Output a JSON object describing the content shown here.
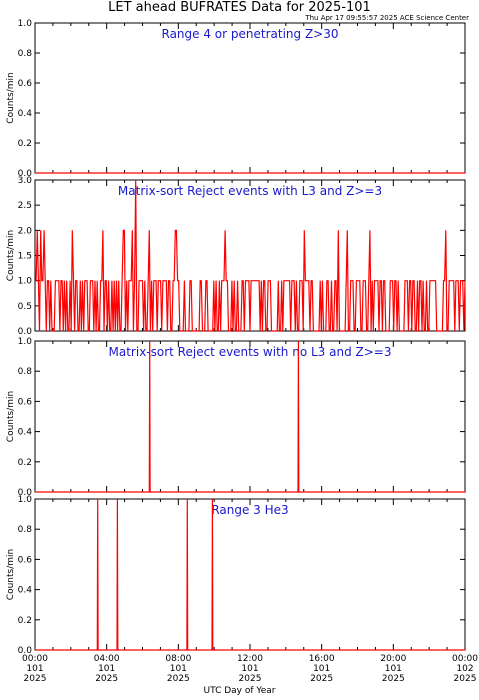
{
  "title": "LET ahead BUFRATES Data for 2025-101",
  "stamp": "Thu Apr 17 09:55:57 2025 ACE Science Center",
  "colors": {
    "series": "#ff0000",
    "panel_title": "#1a1acc",
    "axes": "#000000"
  },
  "chart_data": [
    {
      "type": "line",
      "title": "Range 4 or  penetrating Z>30",
      "ylabel": "Counts/min",
      "ylim": [
        0,
        1.0
      ],
      "yticks": [
        "0.0",
        "0.2",
        "0.4",
        "0.6",
        "0.8",
        "1.0"
      ],
      "x_hours": [],
      "y": []
    },
    {
      "type": "line",
      "title": "Matrix-sort Reject events with L3 and Z>=3",
      "ylabel": "Counts/min",
      "ylim": [
        0,
        3.0
      ],
      "yticks": [
        "0.0",
        "0.5",
        "1.0",
        "1.5",
        "2.0",
        "2.5",
        "3.0"
      ],
      "baseline": 1,
      "spikes": [
        {
          "x": 0.1,
          "y": 2
        },
        {
          "x": 0.3,
          "y": 2
        },
        {
          "x": 0.5,
          "y": 2
        },
        {
          "x": 2.1,
          "y": 2
        },
        {
          "x": 3.8,
          "y": 2
        },
        {
          "x": 4.9,
          "y": 2
        },
        {
          "x": 5.0,
          "y": 2
        },
        {
          "x": 5.4,
          "y": 2
        },
        {
          "x": 5.6,
          "y": 3
        },
        {
          "x": 6.4,
          "y": 2
        },
        {
          "x": 7.8,
          "y": 2
        },
        {
          "x": 7.9,
          "y": 2
        },
        {
          "x": 10.6,
          "y": 2
        },
        {
          "x": 15.0,
          "y": 2
        },
        {
          "x": 16.9,
          "y": 2
        },
        {
          "x": 17.4,
          "y": 2
        },
        {
          "x": 18.7,
          "y": 2
        },
        {
          "x": 22.9,
          "y": 2
        }
      ],
      "dropouts": [
        0.6,
        1.4,
        2.6,
        3.3,
        4.2,
        5.7,
        6.2,
        7.1,
        8.3,
        9.0,
        9.8,
        11.2,
        12.0,
        12.7,
        13.5,
        14.3,
        15.6,
        16.4,
        17.8,
        18.9,
        19.6,
        20.4,
        21.2,
        22.0,
        23.4
      ]
    },
    {
      "type": "line",
      "title": "Matrix-sort Reject events with no L3 and Z>=3",
      "ylabel": "Counts/min",
      "ylim": [
        0,
        1.0
      ],
      "yticks": [
        "0.0",
        "0.2",
        "0.4",
        "0.6",
        "0.8",
        "1.0"
      ],
      "spikes": [
        {
          "x": 6.4,
          "y": 1
        },
        {
          "x": 14.7,
          "y": 1
        }
      ]
    },
    {
      "type": "line",
      "title": "Range 3 He3",
      "ylabel": "Counts/min",
      "ylim": [
        0,
        1.0
      ],
      "yticks": [
        "0.0",
        "0.2",
        "0.4",
        "0.6",
        "0.8",
        "1.0"
      ],
      "spikes": [
        {
          "x": 3.5,
          "y": 1
        },
        {
          "x": 4.6,
          "y": 1
        },
        {
          "x": 8.5,
          "y": 1
        },
        {
          "x": 9.9,
          "y": 1
        }
      ]
    }
  ],
  "xaxis": {
    "label": "UTC Day of Year",
    "range_hours": [
      0,
      24
    ],
    "ticks": [
      {
        "h": 0,
        "time": "00:00",
        "doy": "101",
        "year": "2025"
      },
      {
        "h": 4,
        "time": "04:00",
        "doy": "101",
        "year": "2025"
      },
      {
        "h": 8,
        "time": "08:00",
        "doy": "101",
        "year": "2025"
      },
      {
        "h": 12,
        "time": "12:00",
        "doy": "101",
        "year": "2025"
      },
      {
        "h": 16,
        "time": "16:00",
        "doy": "101",
        "year": "2025"
      },
      {
        "h": 20,
        "time": "20:00",
        "doy": "101",
        "year": "2025"
      },
      {
        "h": 24,
        "time": "00:00",
        "doy": "102",
        "year": "2025"
      }
    ]
  }
}
